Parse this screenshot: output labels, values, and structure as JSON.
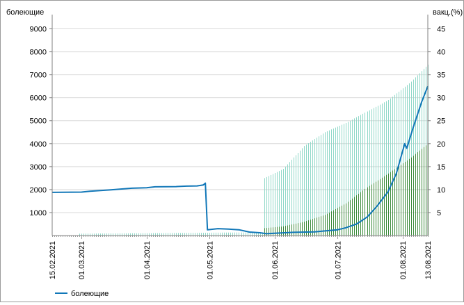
{
  "chart_data": {
    "type": "line",
    "title": "",
    "y_left": {
      "label": "болеющие",
      "ticks": [
        1000,
        2000,
        3000,
        4000,
        5000,
        6000,
        7000,
        8000,
        9000
      ],
      "lim": [
        0,
        9500
      ]
    },
    "y_right": {
      "label": "вакц.(%)",
      "ticks": [
        5,
        10,
        15,
        20,
        25,
        30,
        35,
        40,
        45
      ],
      "lim": [
        0,
        47.5
      ]
    },
    "x": {
      "start": "2021-02-15",
      "end": "2021-08-13",
      "tick_labels": [
        "15.02.2021",
        "01.03.2021",
        "01.04.2021",
        "01.05.2021",
        "01.06.2021",
        "01.07.2021",
        "01.08.2021",
        "13.08.2021"
      ]
    },
    "grid": true,
    "legend": {
      "position": "bottom-left",
      "entries": [
        "болеющие"
      ]
    },
    "series": [
      {
        "name": "болеющие",
        "axis": "left",
        "color": "#1177b8",
        "points": [
          [
            "2021-02-15",
            1880
          ],
          [
            "2021-03-01",
            1890
          ],
          [
            "2021-03-05",
            1930
          ],
          [
            "2021-03-15",
            1990
          ],
          [
            "2021-03-25",
            2060
          ],
          [
            "2021-04-01",
            2080
          ],
          [
            "2021-04-05",
            2120
          ],
          [
            "2021-04-15",
            2130
          ],
          [
            "2021-04-20",
            2150
          ],
          [
            "2021-04-25",
            2160
          ],
          [
            "2021-04-28",
            2200
          ],
          [
            "2021-04-29",
            2280
          ],
          [
            "2021-04-30",
            250
          ],
          [
            "2021-05-05",
            300
          ],
          [
            "2021-05-10",
            280
          ],
          [
            "2021-05-15",
            250
          ],
          [
            "2021-05-20",
            150
          ],
          [
            "2021-05-25",
            120
          ],
          [
            "2021-05-28",
            80
          ],
          [
            "2021-06-01",
            100
          ],
          [
            "2021-06-10",
            140
          ],
          [
            "2021-06-20",
            160
          ],
          [
            "2021-06-25",
            200
          ],
          [
            "2021-07-01",
            250
          ],
          [
            "2021-07-05",
            340
          ],
          [
            "2021-07-10",
            500
          ],
          [
            "2021-07-15",
            800
          ],
          [
            "2021-07-20",
            1300
          ],
          [
            "2021-07-25",
            1900
          ],
          [
            "2021-07-29",
            2700
          ],
          [
            "2021-08-02",
            4000
          ],
          [
            "2021-08-03",
            3800
          ],
          [
            "2021-08-06",
            4700
          ],
          [
            "2021-08-10",
            5800
          ],
          [
            "2021-08-13",
            6500
          ]
        ]
      },
      {
        "axis": "right",
        "color": "#8fd8c8",
        "style": "daily-bars",
        "points": [
          [
            "2021-02-28",
            0.4
          ],
          [
            "2021-05-26",
            0.7
          ],
          [
            "2021-05-27",
            12.5
          ],
          [
            "2021-06-05",
            14.5
          ],
          [
            "2021-06-15",
            19.5
          ],
          [
            "2021-06-25",
            22.5
          ],
          [
            "2021-07-05",
            24.5
          ],
          [
            "2021-07-15",
            27
          ],
          [
            "2021-07-25",
            29.5
          ],
          [
            "2021-08-05",
            33.5
          ],
          [
            "2021-08-13",
            37.2
          ]
        ]
      },
      {
        "axis": "right",
        "color": "#3a8a3a",
        "style": "daily-bars",
        "points": [
          [
            "2021-05-27",
            1.6
          ],
          [
            "2021-06-05",
            2
          ],
          [
            "2021-06-15",
            3
          ],
          [
            "2021-06-25",
            4.5
          ],
          [
            "2021-07-05",
            7
          ],
          [
            "2021-07-15",
            10.5
          ],
          [
            "2021-07-25",
            13.5
          ],
          [
            "2021-08-05",
            17
          ],
          [
            "2021-08-13",
            20
          ]
        ]
      }
    ]
  }
}
